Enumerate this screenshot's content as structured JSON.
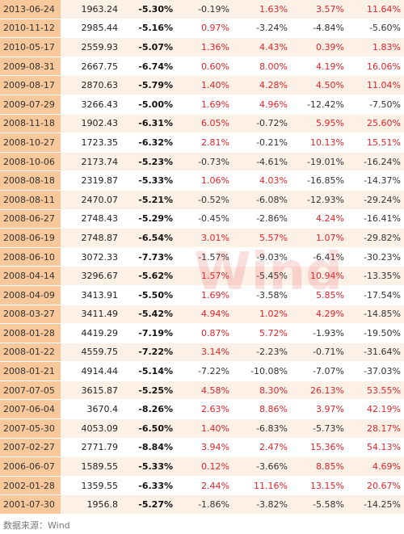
{
  "table": {
    "rows": [
      [
        "2013-06-24",
        "1963.24",
        "-5.30%",
        "-0.19%",
        "1.63%",
        "3.57%",
        "11.64%"
      ],
      [
        "2010-11-12",
        "2985.44",
        "-5.16%",
        "0.97%",
        "-3.24%",
        "-4.84%",
        "-5.60%"
      ],
      [
        "2010-05-17",
        "2559.93",
        "-5.07%",
        "1.36%",
        "4.43%",
        "0.39%",
        "1.83%"
      ],
      [
        "2009-08-31",
        "2667.75",
        "-6.74%",
        "0.60%",
        "8.00%",
        "4.19%",
        "16.06%"
      ],
      [
        "2009-08-17",
        "2870.63",
        "-5.79%",
        "1.40%",
        "4.28%",
        "4.50%",
        "11.04%"
      ],
      [
        "2009-07-29",
        "3266.43",
        "-5.00%",
        "1.69%",
        "4.96%",
        "-12.42%",
        "-7.50%"
      ],
      [
        "2008-11-18",
        "1902.43",
        "-6.31%",
        "6.05%",
        "-0.72%",
        "5.95%",
        "25.60%"
      ],
      [
        "2008-10-27",
        "1723.35",
        "-6.32%",
        "2.81%",
        "-0.21%",
        "10.13%",
        "15.51%"
      ],
      [
        "2008-10-06",
        "2173.74",
        "-5.23%",
        "-0.73%",
        "-4.61%",
        "-19.01%",
        "-16.24%"
      ],
      [
        "2008-08-18",
        "2319.87",
        "-5.33%",
        "1.06%",
        "4.03%",
        "-16.85%",
        "-14.37%"
      ],
      [
        "2008-08-11",
        "2470.07",
        "-5.21%",
        "-0.52%",
        "-6.08%",
        "-12.93%",
        "-29.24%"
      ],
      [
        "2008-06-27",
        "2748.43",
        "-5.29%",
        "-0.45%",
        "-2.86%",
        "4.24%",
        "-16.41%"
      ],
      [
        "2008-06-19",
        "2748.87",
        "-6.54%",
        "3.01%",
        "5.57%",
        "1.07%",
        "-29.82%"
      ],
      [
        "2008-06-10",
        "3072.33",
        "-7.73%",
        "-1.57%",
        "-9.03%",
        "-6.41%",
        "-30.23%"
      ],
      [
        "2008-04-14",
        "3296.67",
        "-5.62%",
        "1.57%",
        "-5.45%",
        "10.94%",
        "-13.35%"
      ],
      [
        "2008-04-09",
        "3413.91",
        "-5.50%",
        "1.69%",
        "-3.58%",
        "5.85%",
        "-17.54%"
      ],
      [
        "2008-03-27",
        "3411.49",
        "-5.42%",
        "4.94%",
        "1.02%",
        "4.29%",
        "-14.85%"
      ],
      [
        "2008-01-28",
        "4419.29",
        "-7.19%",
        "0.87%",
        "5.72%",
        "-1.93%",
        "-19.50%"
      ],
      [
        "2008-01-22",
        "4559.75",
        "-7.22%",
        "3.14%",
        "-2.23%",
        "-0.71%",
        "-31.64%"
      ],
      [
        "2008-01-21",
        "4914.44",
        "-5.14%",
        "-7.22%",
        "-10.08%",
        "-7.07%",
        "-37.03%"
      ],
      [
        "2007-07-05",
        "3615.87",
        "-5.25%",
        "4.58%",
        "8.30%",
        "26.13%",
        "53.55%"
      ],
      [
        "2007-06-04",
        "3670.4",
        "-8.26%",
        "2.63%",
        "8.86%",
        "3.97%",
        "42.19%"
      ],
      [
        "2007-05-30",
        "4053.09",
        "-6.50%",
        "1.40%",
        "-6.83%",
        "-5.73%",
        "28.17%"
      ],
      [
        "2007-02-27",
        "2771.79",
        "-8.84%",
        "3.94%",
        "2.47%",
        "15.36%",
        "54.13%"
      ],
      [
        "2006-06-07",
        "1589.55",
        "-5.33%",
        "0.12%",
        "-3.66%",
        "8.85%",
        "4.69%"
      ],
      [
        "2002-01-28",
        "1359.55",
        "-6.33%",
        "2.44%",
        "11.16%",
        "13.15%",
        "20.67%"
      ],
      [
        "2001-07-30",
        "1956.8",
        "-5.27%",
        "-1.86%",
        "-3.82%",
        "-5.58%",
        "-14.25%"
      ]
    ]
  },
  "watermark": "Wind",
  "source": "数据来源：Wind"
}
